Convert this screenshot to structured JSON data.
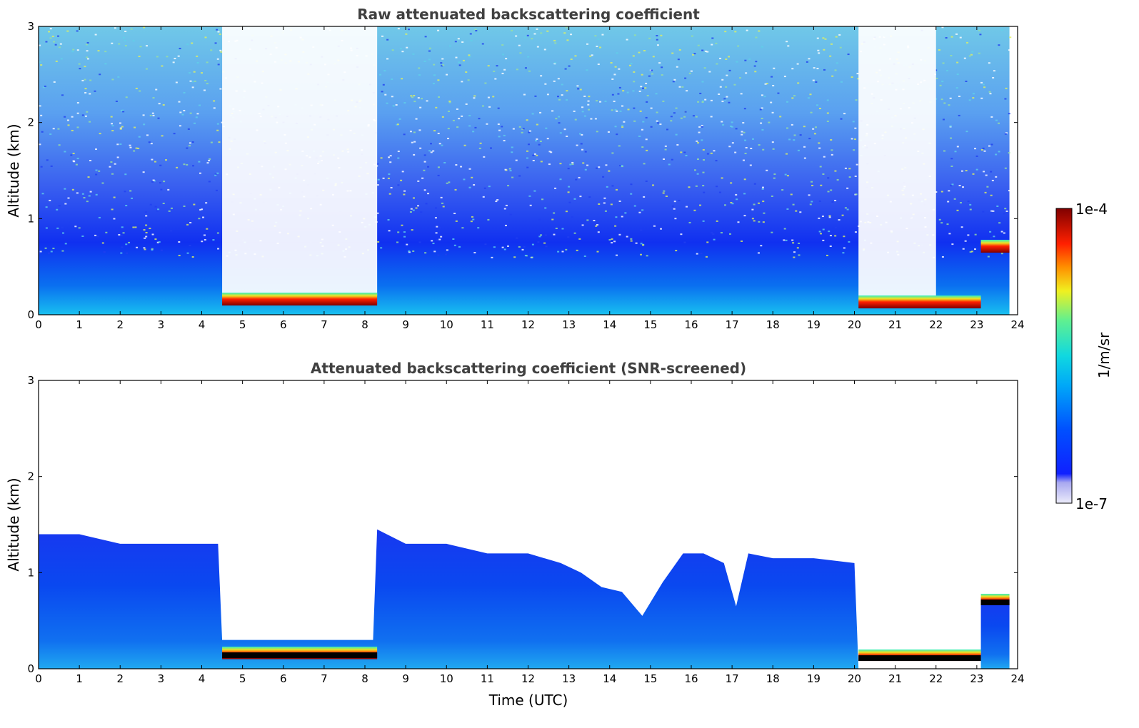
{
  "chart_data": [
    {
      "type": "heatmap",
      "title": "Raw attenuated backscattering coefficient",
      "xlabel": "",
      "ylabel": "Altitude (km)",
      "xlim": [
        0,
        24
      ],
      "ylim": [
        0,
        3
      ],
      "xticks": [
        "0",
        "1",
        "2",
        "3",
        "4",
        "5",
        "6",
        "7",
        "8",
        "9",
        "10",
        "11",
        "12",
        "13",
        "14",
        "15",
        "16",
        "17",
        "18",
        "19",
        "20",
        "21",
        "22",
        "23",
        "24"
      ],
      "yticks": [
        "0",
        "1",
        "2",
        "3"
      ],
      "cloud_layers": [
        {
          "t0": 4.5,
          "t1": 8.3,
          "base_km": [
            0.1,
            0.23
          ]
        },
        {
          "t0": 20.1,
          "t1": 23.1,
          "base_km": [
            0.12,
            0.2
          ]
        },
        {
          "t0": 23.1,
          "t1": 23.8,
          "base_km": [
            0.7,
            0.78
          ]
        }
      ],
      "signal_gaps": [
        {
          "t0": 4.5,
          "t1": 8.3
        },
        {
          "t0": 20.1,
          "t1": 22.0
        }
      ],
      "grid": false
    },
    {
      "type": "heatmap",
      "title": "Attenuated backscattering coefficient (SNR-screened)",
      "xlabel": "Time (UTC)",
      "ylabel": "Altitude (km)",
      "xlim": [
        0,
        24
      ],
      "ylim": [
        0,
        3
      ],
      "xticks": [
        "0",
        "1",
        "2",
        "3",
        "4",
        "5",
        "6",
        "7",
        "8",
        "9",
        "10",
        "11",
        "12",
        "13",
        "14",
        "15",
        "16",
        "17",
        "18",
        "19",
        "20",
        "21",
        "22",
        "23",
        "24"
      ],
      "yticks": [
        "0",
        "1",
        "2",
        "3"
      ],
      "boundary_layer_top": {
        "t": [
          0,
          1,
          2,
          3,
          4,
          4.4,
          8.3,
          9,
          10,
          11,
          12,
          12.8,
          13.3,
          13.8,
          14.3,
          14.8,
          15.3,
          15.8,
          16.3,
          16.8,
          17.1,
          17.4,
          18,
          19,
          20
        ],
        "km": [
          1.4,
          1.4,
          1.3,
          1.3,
          1.3,
          1.3,
          1.45,
          1.3,
          1.3,
          1.2,
          1.2,
          1.1,
          1.0,
          0.85,
          0.8,
          0.55,
          0.9,
          1.2,
          1.2,
          1.1,
          0.65,
          1.2,
          1.15,
          1.15,
          1.1
        ]
      },
      "grid": false
    }
  ],
  "colorbar": {
    "label": "1/m/sr",
    "max_label": "1e-4",
    "min_label": "1e-7",
    "scale": "log",
    "range": [
      1e-07,
      0.0001
    ],
    "colormap": [
      "#e8e8f8",
      "#b0b0f0",
      "#0010ff",
      "#0060ff",
      "#00c0f0",
      "#40f0b0",
      "#e0f020",
      "#ff8000",
      "#e00000",
      "#800000"
    ]
  }
}
